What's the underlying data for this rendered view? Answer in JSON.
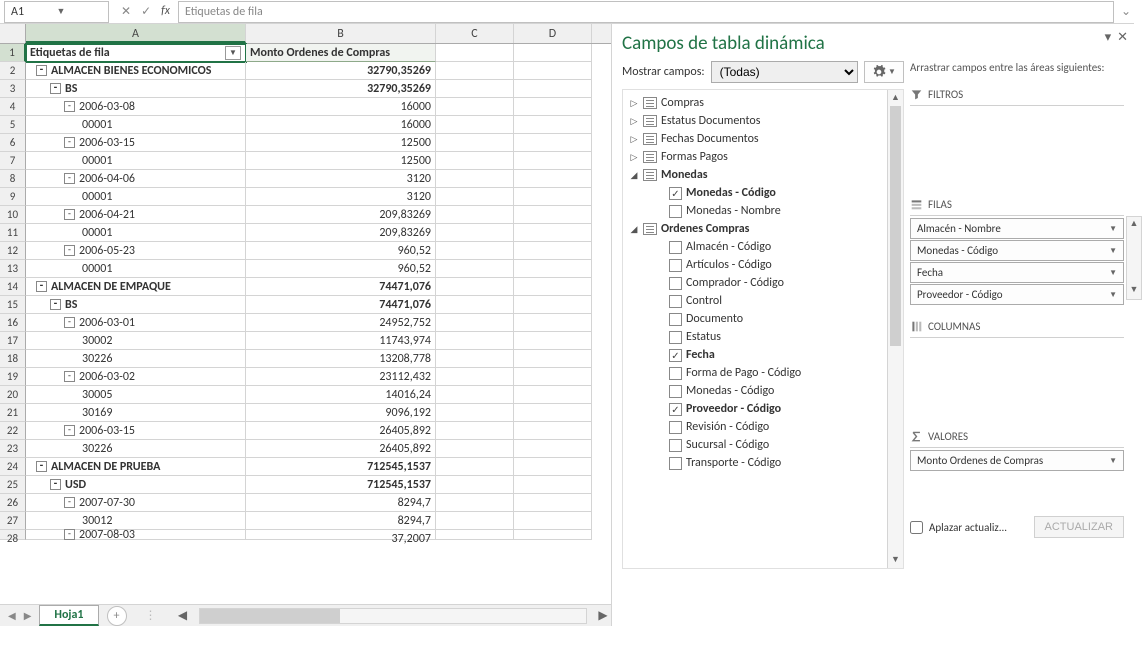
{
  "formula_bar": {
    "cell_ref": "A1",
    "formula_text": "Etiquetas de fila"
  },
  "columns": [
    "A",
    "B",
    "C",
    "D"
  ],
  "pivot_headers": {
    "col_a": "Etiquetas de fila",
    "col_b": "Monto Ordenes de Compras"
  },
  "rows": [
    {
      "n": 1,
      "type": "header"
    },
    {
      "n": 2,
      "a": "ALMACEN BIENES ECONOMICOS",
      "b": "32790,35269",
      "lvl": 1,
      "exp": "-",
      "bold": true
    },
    {
      "n": 3,
      "a": "BS",
      "b": "32790,35269",
      "lvl": 2,
      "exp": "-",
      "bold": true
    },
    {
      "n": 4,
      "a": "2006-03-08",
      "b": "16000",
      "lvl": 3,
      "exp": "-"
    },
    {
      "n": 5,
      "a": "00001",
      "b": "16000",
      "lvl": 4
    },
    {
      "n": 6,
      "a": "2006-03-15",
      "b": "12500",
      "lvl": 3,
      "exp": "-"
    },
    {
      "n": 7,
      "a": "00001",
      "b": "12500",
      "lvl": 4
    },
    {
      "n": 8,
      "a": "2006-04-06",
      "b": "3120",
      "lvl": 3,
      "exp": "-"
    },
    {
      "n": 9,
      "a": "00001",
      "b": "3120",
      "lvl": 4
    },
    {
      "n": 10,
      "a": "2006-04-21",
      "b": "209,83269",
      "lvl": 3,
      "exp": "-"
    },
    {
      "n": 11,
      "a": "00001",
      "b": "209,83269",
      "lvl": 4
    },
    {
      "n": 12,
      "a": "2006-05-23",
      "b": "960,52",
      "lvl": 3,
      "exp": "-"
    },
    {
      "n": 13,
      "a": "00001",
      "b": "960,52",
      "lvl": 4
    },
    {
      "n": 14,
      "a": "ALMACEN DE EMPAQUE",
      "b": "74471,076",
      "lvl": 1,
      "exp": "-",
      "bold": true
    },
    {
      "n": 15,
      "a": "BS",
      "b": "74471,076",
      "lvl": 2,
      "exp": "-",
      "bold": true
    },
    {
      "n": 16,
      "a": "2006-03-01",
      "b": "24952,752",
      "lvl": 3,
      "exp": "-"
    },
    {
      "n": 17,
      "a": "30002",
      "b": "11743,974",
      "lvl": 4
    },
    {
      "n": 18,
      "a": "30226",
      "b": "13208,778",
      "lvl": 4
    },
    {
      "n": 19,
      "a": "2006-03-02",
      "b": "23112,432",
      "lvl": 3,
      "exp": "-"
    },
    {
      "n": 20,
      "a": "30005",
      "b": "14016,24",
      "lvl": 4
    },
    {
      "n": 21,
      "a": "30169",
      "b": "9096,192",
      "lvl": 4
    },
    {
      "n": 22,
      "a": "2006-03-15",
      "b": "26405,892",
      "lvl": 3,
      "exp": "-"
    },
    {
      "n": 23,
      "a": "30226",
      "b": "26405,892",
      "lvl": 4
    },
    {
      "n": 24,
      "a": "ALMACEN DE PRUEBA",
      "b": "712545,1537",
      "lvl": 1,
      "exp": "-",
      "bold": true
    },
    {
      "n": 25,
      "a": "USD",
      "b": "712545,1537",
      "lvl": 2,
      "exp": "-",
      "bold": true
    },
    {
      "n": 26,
      "a": "2007-07-30",
      "b": "8294,7",
      "lvl": 3,
      "exp": "-"
    },
    {
      "n": 27,
      "a": "30012",
      "b": "8294,7",
      "lvl": 4
    },
    {
      "n": 28,
      "a": "2007-08-03",
      "b": "37,2007",
      "lvl": 3,
      "exp": "-",
      "cut": true
    }
  ],
  "sheet_tab": "Hoja1",
  "pivot_pane": {
    "title": "Campos de tabla dinámica",
    "show_fields_label": "Mostrar campos:",
    "show_fields_value": "(Todas)",
    "drag_hint": "Arrastrar campos entre las áreas siguientes:",
    "field_tree": [
      {
        "label": "Compras",
        "type": "table",
        "toggle": "▷"
      },
      {
        "label": "Estatus Documentos",
        "type": "table",
        "toggle": "▷"
      },
      {
        "label": "Fechas Documentos",
        "type": "table",
        "toggle": "▷"
      },
      {
        "label": "Formas Pagos",
        "type": "table",
        "toggle": "▷"
      },
      {
        "label": "Monedas",
        "type": "table",
        "toggle": "◢",
        "bold": true,
        "children": [
          {
            "label": "Monedas - Código",
            "checked": true,
            "bold": true
          },
          {
            "label": "Monedas - Nombre",
            "checked": false
          }
        ]
      },
      {
        "label": "Ordenes Compras",
        "type": "table",
        "toggle": "◢",
        "bold": true,
        "children": [
          {
            "label": "Almacén - Código",
            "checked": false
          },
          {
            "label": "Artículos - Código",
            "checked": false
          },
          {
            "label": "Comprador - Código",
            "checked": false
          },
          {
            "label": "Control",
            "checked": false
          },
          {
            "label": "Documento",
            "checked": false
          },
          {
            "label": "Estatus",
            "checked": false
          },
          {
            "label": "Fecha",
            "checked": true,
            "bold": true
          },
          {
            "label": "Forma de Pago - Código",
            "checked": false
          },
          {
            "label": "Monedas - Código",
            "checked": false
          },
          {
            "label": "Proveedor - Código",
            "checked": true,
            "bold": true
          },
          {
            "label": "Revisión - Código",
            "checked": false
          },
          {
            "label": "Sucursal - Código",
            "checked": false
          },
          {
            "label": "Transporte - Código",
            "checked": false
          }
        ]
      }
    ],
    "areas": {
      "filters": {
        "label": "FILTROS",
        "items": []
      },
      "rows": {
        "label": "FILAS",
        "items": [
          "Almacén - Nombre",
          "Monedas - Código",
          "Fecha",
          "Proveedor - Código"
        ]
      },
      "cols": {
        "label": "COLUMNAS",
        "items": []
      },
      "values": {
        "label": "VALORES",
        "items": [
          "Monto Ordenes de Compras"
        ]
      }
    },
    "defer_label": "Aplazar actualiz...",
    "update_btn": "ACTUALIZAR"
  }
}
